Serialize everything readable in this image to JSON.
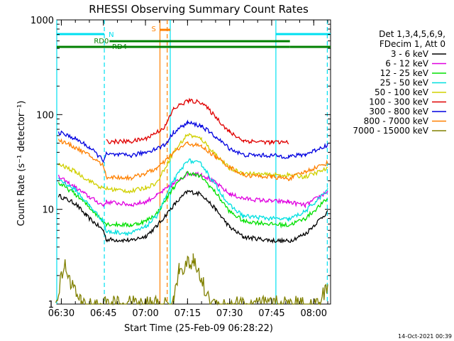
{
  "chart_data": {
    "type": "line",
    "title": "RHESSI Observing Summary Count Rates",
    "xlabel": "Start Time (25-Feb-09 06:28:22)",
    "ylabel": "Count Rate (s⁻¹ detector⁻¹)",
    "y_scale": "log",
    "ylim": [
      1,
      1000
    ],
    "y_ticks": [
      {
        "value": 1,
        "label": "1"
      },
      {
        "value": 10,
        "label": "10"
      },
      {
        "value": 100,
        "label": "100"
      },
      {
        "value": 1000,
        "label": "1000"
      }
    ],
    "x_time_range": [
      "06:28:22",
      "08:06:00"
    ],
    "x_ticks": [
      {
        "time": "06:30",
        "label": "06:30"
      },
      {
        "time": "06:45",
        "label": "06:45"
      },
      {
        "time": "07:00",
        "label": "07:00"
      },
      {
        "time": "07:15",
        "label": "07:15"
      },
      {
        "time": "07:30",
        "label": "07:30"
      },
      {
        "time": "07:45",
        "label": "07:45"
      },
      {
        "time": "08:00",
        "label": "08:00"
      }
    ],
    "legend_placement": "right",
    "legend_header": [
      "Det 1,3,4,5,6,9,",
      "FDecim 1, Att 0"
    ],
    "timestamp": "14-Oct-2021 00:39",
    "flags": [
      {
        "name": "N",
        "color": "#00e0f0",
        "segments": [
          [
            "06:28:22",
            "06:45:20"
          ],
          [
            "07:46:30",
            "08:06:00"
          ]
        ]
      },
      {
        "name": "RD0",
        "color": "#008000",
        "segments": [
          [
            "06:47:10",
            "07:51:30"
          ]
        ]
      },
      {
        "name": "RD4",
        "color": "#008000",
        "segments": [
          [
            "06:28:22",
            "07:51:30"
          ],
          [
            "07:51:30",
            "08:06:00"
          ]
        ]
      },
      {
        "name": "S",
        "color": "#ff8000",
        "segments": [
          [
            "07:05:10",
            "07:08:50"
          ]
        ]
      }
    ],
    "vertical_markers": [
      {
        "time": "06:45:20",
        "style": "dashed",
        "color": "#00e0f0"
      },
      {
        "time": "07:08:50",
        "style": "solid",
        "color": "#00e0f0"
      },
      {
        "time": "07:46:30",
        "style": "solid",
        "color": "#00e0f0"
      },
      {
        "time": "08:04:50",
        "style": "dashed",
        "color": "#00e0f0"
      },
      {
        "time": "07:05:10",
        "style": "solid",
        "color": "#ff8000"
      },
      {
        "time": "07:07:45",
        "style": "dashed",
        "color": "#ff8000"
      },
      {
        "time": "06:28:22",
        "style": "solid",
        "color": "#00e0f0"
      }
    ],
    "series": [
      {
        "name": "3 - 6 keV",
        "color": "#000000",
        "points": [
          [
            "06:29",
            "14.0"
          ],
          [
            "06:35",
            "11.5"
          ],
          [
            "06:39",
            "8.5"
          ],
          [
            "06:45",
            "6.0"
          ],
          [
            "06:46",
            "4.8"
          ],
          [
            "06:55",
            "4.7"
          ],
          [
            "07:00",
            "5.2"
          ],
          [
            "07:04",
            "6.6"
          ],
          [
            "07:10",
            "11.0"
          ],
          [
            "07:15",
            "15.5"
          ],
          [
            "07:20",
            "14.5"
          ],
          [
            "07:25",
            "10.0"
          ],
          [
            "07:30",
            "6.5"
          ],
          [
            "07:35",
            "5.1"
          ],
          [
            "07:45",
            "4.7"
          ],
          [
            "07:51",
            "4.6"
          ],
          [
            "07:57",
            "5.5"
          ],
          [
            "08:05",
            "9.5"
          ]
        ]
      },
      {
        "name": "6 - 12 keV",
        "color": "#e000e0",
        "points": [
          [
            "06:29",
            "22.0"
          ],
          [
            "06:35",
            "17.0"
          ],
          [
            "06:40",
            "13.5"
          ],
          [
            "06:45",
            "11.0"
          ],
          [
            "06:46",
            "12.0"
          ],
          [
            "06:55",
            "11.2"
          ],
          [
            "07:00",
            "12.0"
          ],
          [
            "07:04",
            "14.0"
          ],
          [
            "07:10",
            "18.5"
          ],
          [
            "07:15",
            "24.0"
          ],
          [
            "07:20",
            "23.5"
          ],
          [
            "07:25",
            "19.0"
          ],
          [
            "07:30",
            "14.5"
          ],
          [
            "07:35",
            "13.0"
          ],
          [
            "07:45",
            "12.2"
          ],
          [
            "07:51",
            "12.0"
          ],
          [
            "07:57",
            "11.0"
          ],
          [
            "08:05",
            "15.5"
          ]
        ]
      },
      {
        "name": "12 - 25 keV",
        "color": "#00e000",
        "points": [
          [
            "06:29",
            "19.0"
          ],
          [
            "06:35",
            "14.5"
          ],
          [
            "06:40",
            "10.5"
          ],
          [
            "06:45",
            "7.5"
          ],
          [
            "06:46",
            "7.0"
          ],
          [
            "06:55",
            "6.8"
          ],
          [
            "07:00",
            "7.5"
          ],
          [
            "07:04",
            "9.0"
          ],
          [
            "07:10",
            "17.0"
          ],
          [
            "07:15",
            "24.5"
          ],
          [
            "07:20",
            "22.0"
          ],
          [
            "07:25",
            "15.0"
          ],
          [
            "07:30",
            "9.5"
          ],
          [
            "07:35",
            "7.5"
          ],
          [
            "07:45",
            "7.0"
          ],
          [
            "07:51",
            "6.8"
          ],
          [
            "07:57",
            "8.0"
          ],
          [
            "08:05",
            "13.0"
          ]
        ]
      },
      {
        "name": "25 - 50 keV",
        "color": "#00e0e0",
        "points": [
          [
            "06:29",
            "21.0"
          ],
          [
            "06:35",
            "16.0"
          ],
          [
            "06:40",
            "11.0"
          ],
          [
            "06:45",
            "7.5"
          ],
          [
            "06:46",
            "5.8"
          ],
          [
            "06:55",
            "5.6"
          ],
          [
            "07:00",
            "6.5"
          ],
          [
            "07:04",
            "8.5"
          ],
          [
            "07:10",
            "20.0"
          ],
          [
            "07:15",
            "33.0"
          ],
          [
            "07:20",
            "30.0"
          ],
          [
            "07:25",
            "18.0"
          ],
          [
            "07:30",
            "11.0"
          ],
          [
            "07:35",
            "8.5"
          ],
          [
            "07:45",
            "8.0"
          ],
          [
            "07:51",
            "7.8"
          ],
          [
            "07:57",
            "9.5"
          ],
          [
            "08:05",
            "16.0"
          ]
        ]
      },
      {
        "name": "50 - 100 keV",
        "color": "#d0d000",
        "points": [
          [
            "06:29",
            "30.0"
          ],
          [
            "06:35",
            "25.0"
          ],
          [
            "06:40",
            "20.0"
          ],
          [
            "06:45",
            "16.5"
          ],
          [
            "06:46",
            "16.5"
          ],
          [
            "06:55",
            "15.5"
          ],
          [
            "07:00",
            "17.0"
          ],
          [
            "07:04",
            "19.0"
          ],
          [
            "07:10",
            "40.0"
          ],
          [
            "07:15",
            "62.0"
          ],
          [
            "07:20",
            "55.0"
          ],
          [
            "07:25",
            "38.0"
          ],
          [
            "07:30",
            "27.0"
          ],
          [
            "07:35",
            "24.0"
          ],
          [
            "07:45",
            "23.0"
          ],
          [
            "07:51",
            "23.0"
          ],
          [
            "07:57",
            "22.0"
          ],
          [
            "08:05",
            "27.0"
          ]
        ]
      },
      {
        "name": "100 - 300 keV",
        "color": "#e00000",
        "points": [
          [
            "06:46",
            "52.0"
          ],
          [
            "06:55",
            "52.0"
          ],
          [
            "07:00",
            "56.0"
          ],
          [
            "07:04",
            "65.0"
          ],
          [
            "07:07",
            "75.0"
          ],
          [
            "07:10",
            "115.0"
          ],
          [
            "07:15",
            "140.0"
          ],
          [
            "07:20",
            "135.0"
          ],
          [
            "07:25",
            "95.0"
          ],
          [
            "07:30",
            "65.0"
          ],
          [
            "07:35",
            "53.0"
          ],
          [
            "07:45",
            "51.0"
          ],
          [
            "07:51",
            "51.0"
          ]
        ]
      },
      {
        "name": "300 - 800 keV",
        "color": "#0000e0",
        "points": [
          [
            "06:29",
            "65.0"
          ],
          [
            "06:35",
            "56.0"
          ],
          [
            "06:40",
            "45.0"
          ],
          [
            "06:45",
            "33.0"
          ],
          [
            "06:46",
            "38.0"
          ],
          [
            "06:55",
            "37.0"
          ],
          [
            "07:00",
            "40.0"
          ],
          [
            "07:04",
            "44.0"
          ],
          [
            "07:07",
            "48.0"
          ],
          [
            "07:10",
            "65.0"
          ],
          [
            "07:15",
            "82.0"
          ],
          [
            "07:20",
            "76.0"
          ],
          [
            "07:25",
            "58.0"
          ],
          [
            "07:30",
            "44.0"
          ],
          [
            "07:35",
            "37.5"
          ],
          [
            "07:45",
            "37.0"
          ],
          [
            "07:51",
            "36.0"
          ],
          [
            "07:57",
            "38.0"
          ],
          [
            "08:05",
            "48.0"
          ]
        ]
      },
      {
        "name": "800 - 7000 keV",
        "color": "#ff8000",
        "points": [
          [
            "06:29",
            "54.0"
          ],
          [
            "06:35",
            "45.0"
          ],
          [
            "06:40",
            "37.0"
          ],
          [
            "06:45",
            "29.0"
          ],
          [
            "06:46",
            "22.0"
          ],
          [
            "06:55",
            "21.5"
          ],
          [
            "07:00",
            "24.0"
          ],
          [
            "07:04",
            "27.0"
          ],
          [
            "07:07",
            "32.0"
          ],
          [
            "07:10",
            "40.0"
          ],
          [
            "07:15",
            "50.0"
          ],
          [
            "07:20",
            "46.0"
          ],
          [
            "07:25",
            "36.0"
          ],
          [
            "07:30",
            "28.0"
          ],
          [
            "07:35",
            "23.0"
          ],
          [
            "07:45",
            "22.0"
          ],
          [
            "07:51",
            "21.0"
          ],
          [
            "07:57",
            "25.0"
          ],
          [
            "08:05",
            "31.0"
          ]
        ]
      },
      {
        "name": "7000 - 15000 keV",
        "color": "#808000",
        "points": [
          [
            "06:28",
            "1"
          ],
          [
            "06:31",
            "2.6"
          ],
          [
            "06:34",
            "1.6"
          ],
          [
            "06:37",
            "1.0"
          ],
          [
            "07:10",
            "1.0"
          ],
          [
            "07:12",
            "2.4"
          ],
          [
            "07:17",
            "2.8"
          ],
          [
            "07:20",
            "1.8"
          ],
          [
            "07:23",
            "1.0"
          ],
          [
            "08:02",
            "1.0"
          ],
          [
            "08:05",
            "1.6"
          ]
        ]
      }
    ]
  }
}
